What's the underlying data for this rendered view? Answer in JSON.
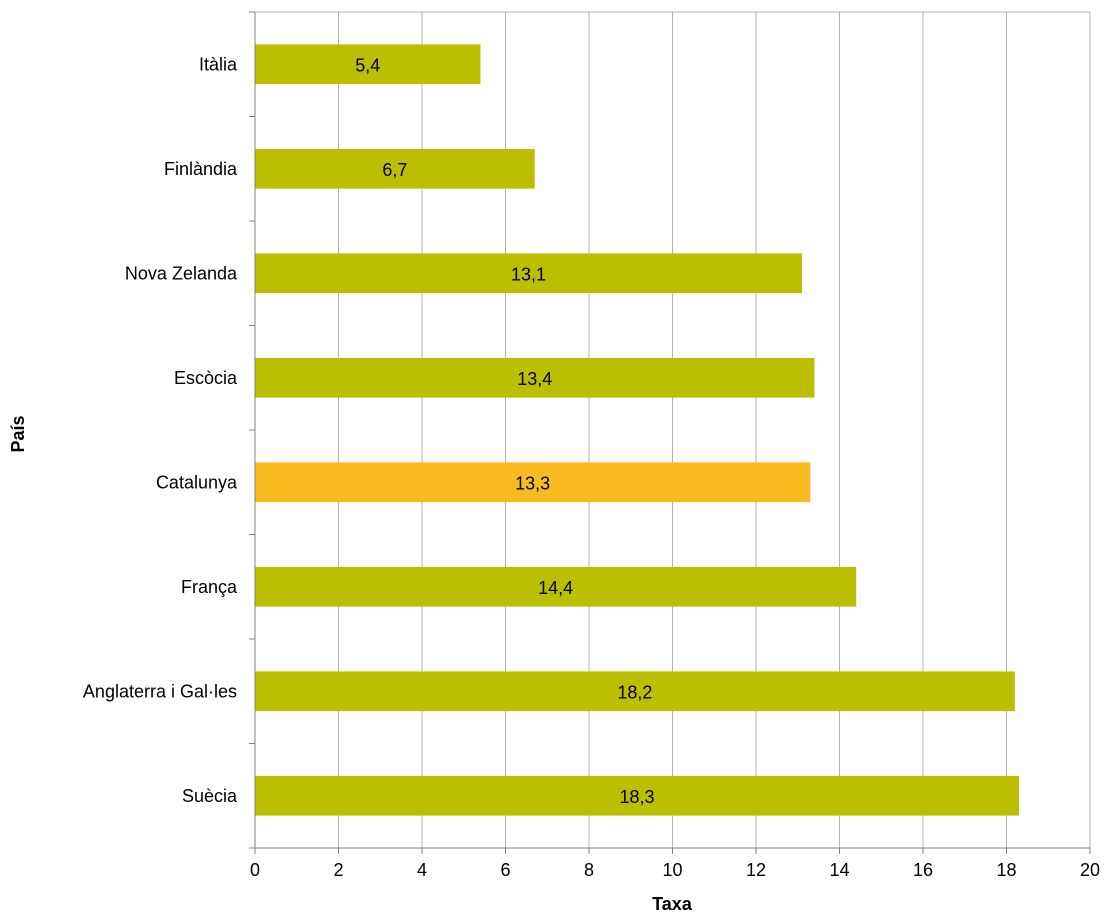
{
  "chart_data": {
    "type": "bar",
    "orientation": "horizontal",
    "categories": [
      "Itàlia",
      "Finlàndia",
      "Nova Zelanda",
      "Escòcia",
      "Catalunya",
      "França",
      "Anglaterra i Gal·les",
      "Suècia"
    ],
    "values": [
      5.4,
      6.7,
      13.1,
      13.4,
      13.3,
      14.4,
      18.2,
      18.3
    ],
    "value_labels": [
      "5,4",
      "6,7",
      "13,1",
      "13,4",
      "13,3",
      "14,4",
      "18,2",
      "18,3"
    ],
    "bar_colors": [
      "#bcbf00",
      "#bcbf00",
      "#bcbf00",
      "#bcbf00",
      "#f9bb1f",
      "#bcbf00",
      "#bcbf00",
      "#bcbf00"
    ],
    "highlight_category": "Catalunya",
    "xlabel": "Taxa",
    "ylabel": "País",
    "xlim": [
      0,
      20
    ],
    "x_ticks": [
      0,
      2,
      4,
      6,
      8,
      10,
      12,
      14,
      16,
      18,
      20
    ],
    "grid": "vertical",
    "legend": "none"
  }
}
